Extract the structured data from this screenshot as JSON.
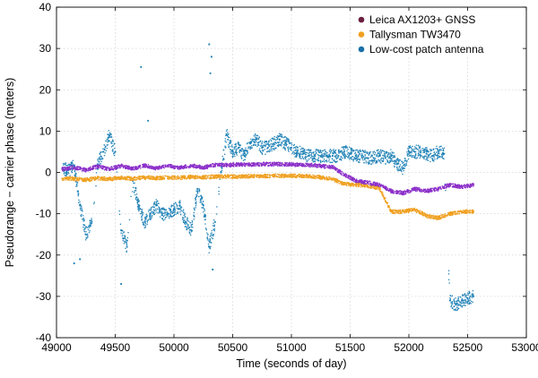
{
  "chart_data": {
    "type": "scatter",
    "title": "",
    "xlabel": "Time (seconds of day)",
    "ylabel": "Pseudorange − carrier phase (meters)",
    "xlim": [
      49000,
      53000
    ],
    "ylim": [
      -40,
      40
    ],
    "xticks": [
      49000,
      49500,
      50000,
      50500,
      51000,
      51500,
      52000,
      52500,
      53000
    ],
    "yticks": [
      40,
      30,
      20,
      10,
      0,
      -10,
      -20,
      -30,
      -40
    ],
    "xtick_labels": [
      "49000",
      "49500",
      "50000",
      "50500",
      "51000",
      "51500",
      "52000",
      "52500",
      "53000"
    ],
    "ytick_labels": [
      "40",
      "30",
      "20",
      "10",
      "0",
      "-10",
      "-20",
      "-30",
      "-40"
    ],
    "grid": true,
    "legend_position": "top-right",
    "series": [
      {
        "name": "Leica AX1203+ GNSS",
        "color": "#8b2fc9",
        "legend_color": "#6a1e3e",
        "x": [
          49050,
          49150,
          49250,
          49350,
          49450,
          49550,
          49650,
          49750,
          49850,
          49950,
          50050,
          50150,
          50250,
          50350,
          50450,
          50550,
          50650,
          50750,
          50850,
          50950,
          51050,
          51150,
          51250,
          51350,
          51450,
          51550,
          51650,
          51750,
          51850,
          51950,
          52050,
          52150,
          52250,
          52350,
          52450,
          52550
        ],
        "values": [
          0.8,
          1.2,
          0.6,
          1.5,
          0.8,
          1.6,
          0.9,
          1.7,
          1.0,
          1.6,
          1.1,
          1.7,
          1.2,
          1.8,
          1.8,
          1.9,
          1.9,
          2.0,
          2.0,
          2.0,
          1.9,
          1.8,
          1.6,
          1.3,
          -0.5,
          -2.0,
          -2.5,
          -3.0,
          -4.5,
          -5.0,
          -4.0,
          -4.5,
          -4.0,
          -3.0,
          -3.5,
          -3.0
        ]
      },
      {
        "name": "Tallysman TW3470",
        "color": "#f0a020",
        "legend_color": "#f0a020",
        "x": [
          49050,
          49150,
          49250,
          49350,
          49450,
          49550,
          49650,
          49750,
          49850,
          49950,
          50050,
          50150,
          50250,
          50350,
          50450,
          50550,
          50650,
          50750,
          50850,
          50950,
          51050,
          51150,
          51250,
          51350,
          51450,
          51550,
          51650,
          51750,
          51850,
          51950,
          52050,
          52150,
          52250,
          52350,
          52450,
          52550
        ],
        "values": [
          -1.5,
          -1.5,
          -1.8,
          -1.4,
          -1.6,
          -1.3,
          -1.5,
          -1.2,
          -1.4,
          -1.2,
          -1.3,
          -1.1,
          -1.2,
          -1.0,
          -1.0,
          -1.0,
          -0.9,
          -0.9,
          -0.8,
          -0.8,
          -0.8,
          -0.9,
          -1.2,
          -1.6,
          -2.8,
          -3.0,
          -3.3,
          -3.8,
          -9.5,
          -9.5,
          -9.0,
          -10.5,
          -11.0,
          -10.0,
          -9.5,
          -9.5
        ]
      },
      {
        "name": "Low-cost patch antenna",
        "color": "#2585b8",
        "legend_color": "#1a6fa8",
        "x": [
          49050,
          49100,
          49150,
          49200,
          49250,
          49300,
          49350,
          49400,
          49450,
          49500,
          49550,
          49600,
          49650,
          49700,
          49750,
          49800,
          49850,
          49900,
          49950,
          50000,
          50050,
          50100,
          50150,
          50200,
          50250,
          50300,
          50350,
          50400,
          50450,
          50500,
          50550,
          50600,
          50650,
          50700,
          50750,
          50800,
          50850,
          50900,
          50950,
          51000,
          51050,
          51100,
          51150,
          51200,
          51250,
          51300,
          51350,
          51400,
          51450,
          51500,
          51550,
          51600,
          51650,
          51700,
          51750,
          51800,
          51850,
          51900,
          51950,
          52000,
          52050,
          52100,
          52150,
          52200,
          52250,
          52300,
          52350,
          52400,
          52450,
          52500,
          52550
        ],
        "values": [
          1.0,
          0.5,
          1.5,
          -8.0,
          -15.0,
          -12.0,
          2.0,
          5.0,
          9.0,
          5.0,
          -14.0,
          -18.0,
          -2.0,
          -8.0,
          -12.0,
          -10.0,
          -8.0,
          -10.0,
          -10.0,
          -9.0,
          -8.0,
          -12.0,
          -14.0,
          -4.0,
          -8.0,
          -18.0,
          -12.0,
          0.0,
          9.0,
          5.0,
          6.0,
          4.0,
          7.0,
          8.0,
          6.0,
          6.0,
          7.0,
          8.0,
          7.0,
          6.0,
          5.0,
          4.5,
          4.0,
          4.0,
          4.0,
          4.0,
          4.0,
          4.0,
          5.0,
          4.5,
          4.0,
          4.0,
          3.5,
          3.5,
          4.0,
          3.5,
          4.0,
          2.0,
          1.0,
          5.0,
          5.0,
          5.0,
          4.5,
          4.0,
          5.0,
          4.5,
          -31.0,
          -32.0,
          -31.0,
          -30.5,
          -30.0
        ]
      }
    ],
    "outliers": {
      "series": "Low-cost patch antenna",
      "x": [
        49150,
        49200,
        49550,
        49720,
        49780,
        50300,
        50310,
        50330,
        50320
      ],
      "values": [
        -22.0,
        -21.0,
        -27.0,
        25.5,
        12.5,
        31.0,
        24.0,
        -23.5,
        28.0
      ]
    }
  }
}
